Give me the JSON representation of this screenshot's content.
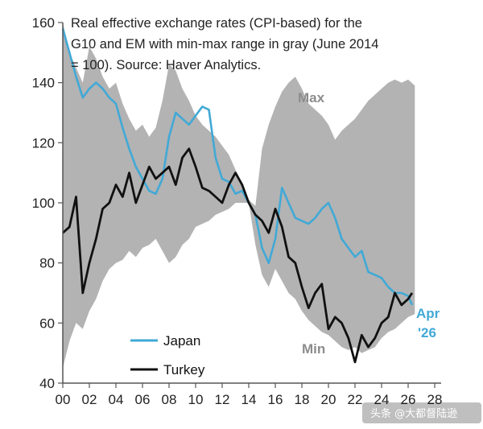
{
  "chart_data": {
    "type": "line",
    "title_lines": [
      "Real effective exchange rates (CPI-based) for the",
      "G10 and EM with min-max range in gray (June 2014",
      "= 100). Source: Haver Analytics."
    ],
    "xlim": [
      0,
      28
    ],
    "ylim": [
      40,
      160
    ],
    "x_ticks": [
      0,
      2,
      4,
      6,
      8,
      10,
      12,
      14,
      16,
      18,
      20,
      22,
      24,
      26,
      28
    ],
    "x_tick_labels": [
      "00",
      "02",
      "04",
      "06",
      "08",
      "10",
      "12",
      "14",
      "16",
      "18",
      "20",
      "22",
      "24",
      "26",
      "28"
    ],
    "y_ticks": [
      40,
      60,
      80,
      100,
      120,
      140,
      160
    ],
    "y_tick_labels": [
      "40",
      "60",
      "80",
      "100",
      "120",
      "140",
      "160"
    ],
    "grid": false,
    "legend_position": "bottom-left",
    "range_band": {
      "color": "#b3b3b3",
      "x": [
        0,
        0.5,
        1,
        1.5,
        2,
        2.5,
        3,
        3.5,
        4,
        4.5,
        5,
        5.5,
        6,
        6.5,
        7,
        7.5,
        8,
        8.5,
        9,
        9.5,
        10,
        10.5,
        11,
        11.5,
        12,
        12.5,
        13,
        13.5,
        14,
        14.5,
        15,
        15.5,
        16,
        16.5,
        17,
        17.5,
        18,
        18.5,
        19,
        19.5,
        20,
        20.5,
        21,
        21.5,
        22,
        22.5,
        23,
        23.5,
        24,
        24.5,
        25,
        25.5,
        26,
        26.5
      ],
      "max": [
        160,
        150,
        145,
        140,
        152,
        148,
        142,
        138,
        140,
        133,
        128,
        124,
        126,
        122,
        125,
        134,
        146,
        144,
        138,
        134,
        129,
        126,
        124,
        122,
        119,
        116,
        111,
        106,
        101,
        99,
        118,
        126,
        132,
        137,
        140,
        142,
        138,
        133,
        131,
        129,
        126,
        121,
        124,
        126,
        128,
        131,
        134,
        136,
        138,
        140,
        141,
        140,
        141,
        139
      ],
      "min": [
        45,
        54,
        60,
        58,
        64,
        68,
        74,
        78,
        80,
        81,
        84,
        82,
        85,
        86,
        88,
        84,
        80,
        82,
        86,
        88,
        92,
        93,
        94,
        96,
        97,
        98,
        100,
        100,
        100,
        86,
        76,
        72,
        78,
        74,
        70,
        68,
        64,
        61,
        59,
        57,
        56,
        54,
        52,
        51,
        52,
        50,
        51,
        52,
        55,
        57,
        58,
        60,
        62,
        63
      ]
    },
    "series": [
      {
        "name": "Japan",
        "color": "#41a9d6",
        "x": [
          0,
          0.5,
          1,
          1.5,
          2,
          2.5,
          3,
          3.5,
          4,
          4.5,
          5,
          5.5,
          6,
          6.5,
          7,
          7.5,
          8,
          8.5,
          9,
          9.5,
          10,
          10.5,
          11,
          11.5,
          12,
          12.5,
          13,
          13.5,
          14,
          14.5,
          15,
          15.5,
          16,
          16.5,
          17,
          17.5,
          18,
          18.5,
          19,
          19.5,
          20,
          20.5,
          21,
          21.5,
          22,
          22.5,
          23,
          23.5,
          24,
          24.5,
          25,
          25.5,
          26,
          26.3
        ],
        "y": [
          158,
          150,
          142,
          135,
          138,
          140,
          138,
          135,
          133,
          125,
          118,
          112,
          108,
          104,
          103,
          108,
          122,
          130,
          128,
          126,
          129,
          132,
          131,
          115,
          108,
          107,
          103,
          104,
          100,
          96,
          85,
          80,
          88,
          105,
          100,
          95,
          94,
          93,
          95,
          98,
          100,
          95,
          88,
          85,
          82,
          84,
          77,
          76,
          75,
          72,
          70,
          70,
          69,
          66
        ]
      },
      {
        "name": "Turkey",
        "color": "#111111",
        "x": [
          0,
          0.5,
          1,
          1.5,
          2,
          2.5,
          3,
          3.5,
          4,
          4.5,
          5,
          5.5,
          6,
          6.5,
          7,
          7.5,
          8,
          8.5,
          9,
          9.5,
          10,
          10.5,
          11,
          11.5,
          12,
          12.5,
          13,
          13.5,
          14,
          14.5,
          15,
          15.5,
          16,
          16.5,
          17,
          17.5,
          18,
          18.5,
          19,
          19.5,
          20,
          20.5,
          21,
          21.5,
          22,
          22.5,
          23,
          23.5,
          24,
          24.5,
          25,
          25.5,
          26,
          26.3
        ],
        "y": [
          90,
          92,
          102,
          70,
          80,
          88,
          98,
          100,
          106,
          102,
          110,
          100,
          106,
          112,
          108,
          110,
          112,
          106,
          115,
          118,
          112,
          105,
          104,
          102,
          100,
          106,
          110,
          106,
          100,
          96,
          94,
          90,
          98,
          92,
          82,
          80,
          72,
          65,
          70,
          73,
          58,
          62,
          60,
          55,
          47,
          56,
          52,
          55,
          60,
          62,
          70,
          66,
          68,
          70
        ]
      }
    ],
    "annotations": {
      "max_label": "Max",
      "min_label": "Min",
      "end_label_line1": "Apr",
      "end_label_line2": "'26"
    }
  },
  "watermark": "头条 @大都督陆逊"
}
